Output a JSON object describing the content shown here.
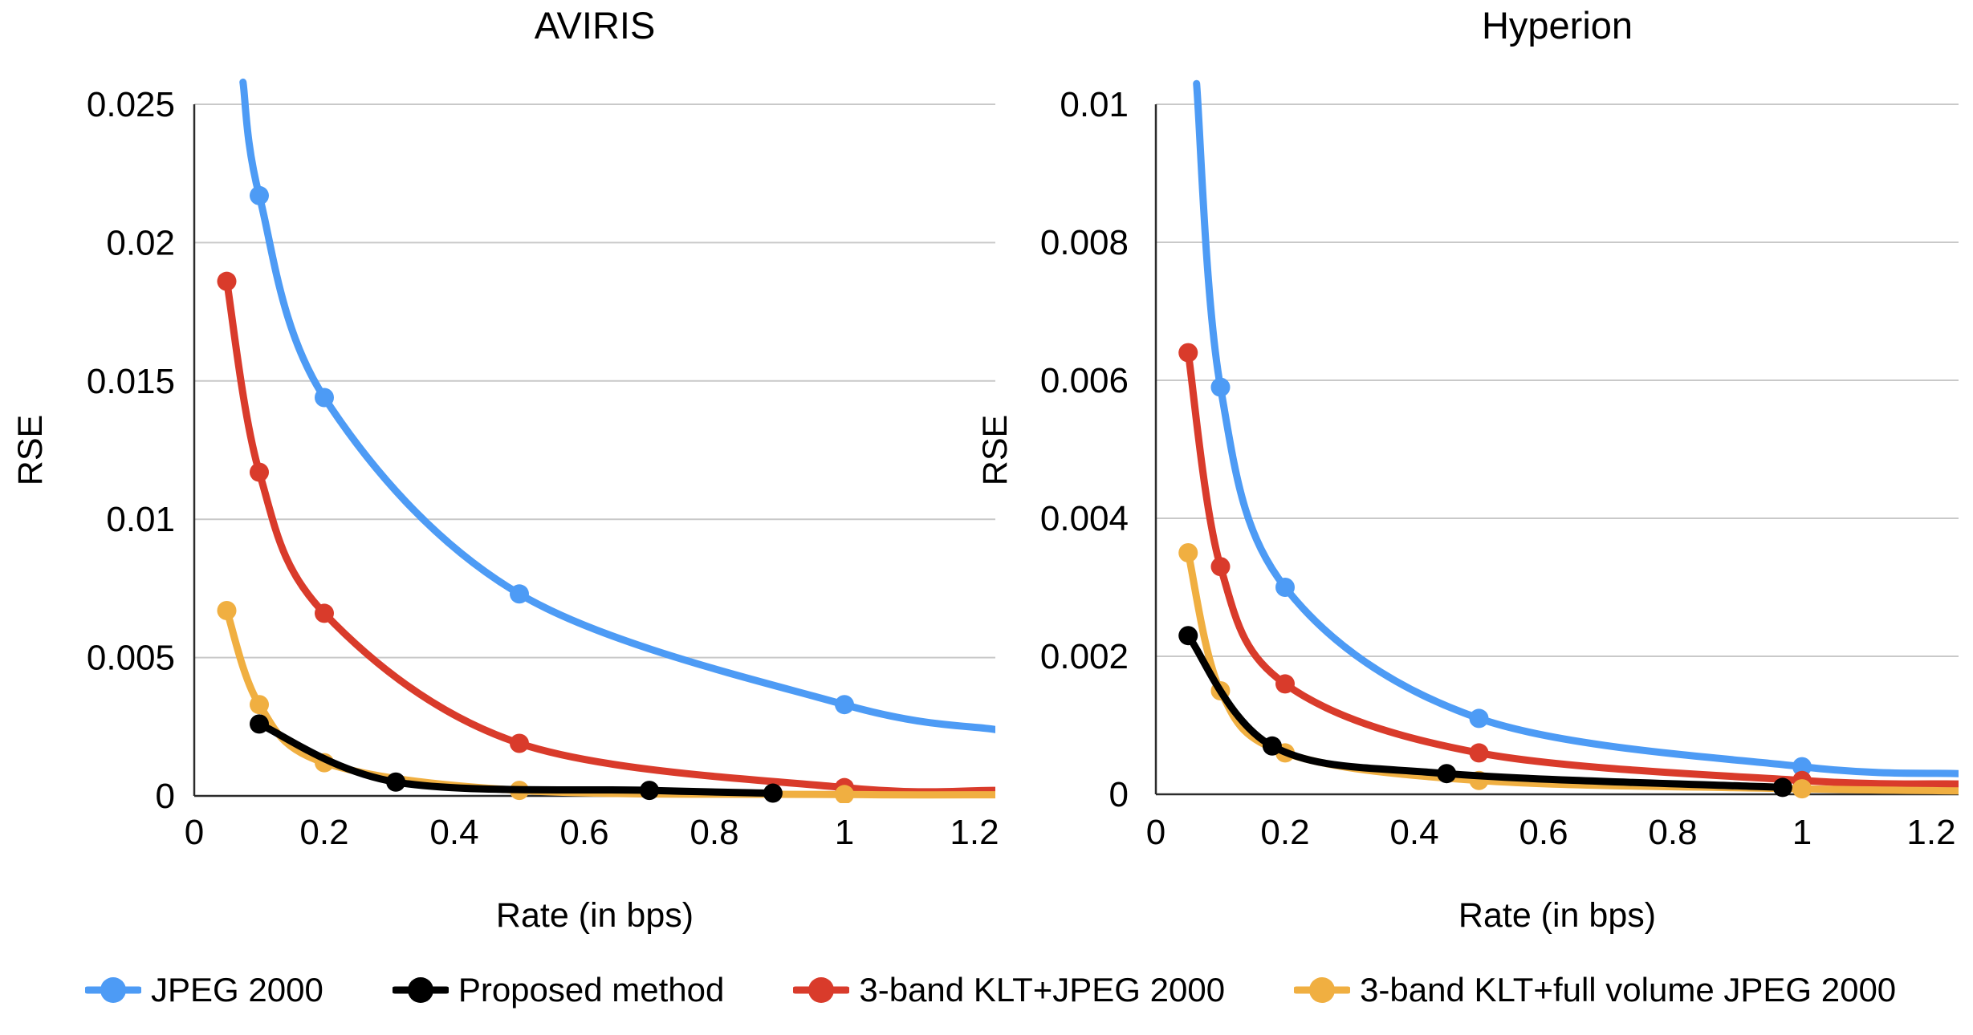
{
  "figure": {
    "background": "#ffffff"
  },
  "chart_data": [
    {
      "type": "line",
      "title": "AVIRIS",
      "xlabel": "Rate (in bps)",
      "ylabel": "RSE",
      "xlim": [
        0,
        1.232
      ],
      "ylim": [
        0,
        0.025
      ],
      "grid": "horizontal",
      "legend_position": "bottom",
      "x_ticks": {
        "values": [
          0,
          0.2,
          0.4,
          0.6,
          0.8,
          1,
          1.2
        ],
        "labels": [
          "0",
          "0.2",
          "0.4",
          "0.6",
          "0.8",
          "1",
          "1.2"
        ]
      },
      "y_ticks": {
        "values": [
          0,
          0.005,
          0.01,
          0.015,
          0.02,
          0.025
        ],
        "labels": [
          "0",
          "0.005",
          "0.01",
          "0.015",
          "0.02",
          "0.025"
        ]
      },
      "series": [
        {
          "name": "JPEG 2000",
          "color": "#4D9BF5",
          "points": [
            [
              0.1,
              0.0217
            ],
            [
              0.2,
              0.0144
            ],
            [
              0.5,
              0.0073
            ],
            [
              1,
              0.0033
            ]
          ],
          "enters_from_top_at": [
            0.075,
            0.0258
          ],
          "extends_to": [
            1.232,
            0.0024
          ]
        },
        {
          "name": "Proposed method",
          "color": "#000000",
          "points": [
            [
              0.1,
              0.0026
            ],
            [
              0.31,
              0.0005
            ],
            [
              0.7,
              0.0002
            ],
            [
              0.89,
              0.0001
            ]
          ]
        },
        {
          "name": "3-band KLT+JPEG 2000",
          "color": "#D93B2B",
          "points": [
            [
              0.05,
              0.0186
            ],
            [
              0.1,
              0.0117
            ],
            [
              0.2,
              0.0066
            ],
            [
              0.5,
              0.0019
            ],
            [
              1,
              0.0003
            ]
          ],
          "extends_to": [
            1.232,
            0.0002
          ]
        },
        {
          "name": "3-band KLT+full volume JPEG 2000",
          "color": "#F0AF41",
          "points": [
            [
              0.05,
              0.0067
            ],
            [
              0.1,
              0.0033
            ],
            [
              0.2,
              0.0012
            ],
            [
              0.5,
              0.0002
            ],
            [
              1,
              5e-05
            ]
          ],
          "extends_to": [
            1.232,
            4e-05
          ]
        }
      ]
    },
    {
      "type": "line",
      "title": "Hyperion",
      "xlabel": "Rate (in bps)",
      "ylabel": "RSE",
      "xlim": [
        0,
        1.242
      ],
      "ylim": [
        0,
        0.01
      ],
      "grid": "horizontal",
      "legend_position": "bottom",
      "x_ticks": {
        "values": [
          0,
          0.2,
          0.4,
          0.6,
          0.8,
          1,
          1.2
        ],
        "labels": [
          "0",
          "0.2",
          "0.4",
          "0.6",
          "0.8",
          "1",
          "1.2"
        ]
      },
      "y_ticks": {
        "values": [
          0,
          0.002,
          0.004,
          0.006,
          0.008,
          0.01
        ],
        "labels": [
          "0",
          "0.002",
          "0.004",
          "0.006",
          "0.008",
          "0.01"
        ]
      },
      "series": [
        {
          "name": "JPEG 2000",
          "color": "#4D9BF5",
          "points": [
            [
              0.1,
              0.0059
            ],
            [
              0.2,
              0.003
            ],
            [
              0.5,
              0.0011
            ],
            [
              1,
              0.0004
            ]
          ],
          "enters_from_top_at": [
            0.063,
            0.0103
          ],
          "extends_to": [
            1.242,
            0.0003
          ]
        },
        {
          "name": "Proposed method",
          "color": "#000000",
          "points": [
            [
              0.05,
              0.0023
            ],
            [
              0.18,
              0.0007
            ],
            [
              0.45,
              0.0003
            ],
            [
              0.97,
              0.0001
            ]
          ]
        },
        {
          "name": "3-band KLT+JPEG 2000",
          "color": "#D93B2B",
          "points": [
            [
              0.05,
              0.0064
            ],
            [
              0.1,
              0.0033
            ],
            [
              0.2,
              0.0016
            ],
            [
              0.5,
              0.0006
            ],
            [
              1,
              0.0002
            ]
          ],
          "extends_to": [
            1.242,
            0.00015
          ]
        },
        {
          "name": "3-band KLT+full volume JPEG 2000",
          "color": "#F0AF41",
          "points": [
            [
              0.05,
              0.0035
            ],
            [
              0.1,
              0.0015
            ],
            [
              0.2,
              0.0006
            ],
            [
              0.5,
              0.0002
            ],
            [
              1,
              8e-05
            ]
          ],
          "extends_to": [
            1.242,
            5e-05
          ]
        }
      ]
    }
  ],
  "legend": {
    "items": [
      {
        "label": "JPEG 2000",
        "color": "#4D9BF5"
      },
      {
        "label": "Proposed method",
        "color": "#000000"
      },
      {
        "label": "3-band KLT+JPEG 2000",
        "color": "#D93B2B"
      },
      {
        "label": "3-band KLT+full volume JPEG 2000",
        "color": "#F0AF41"
      }
    ]
  },
  "style_colors": {
    "gridline": "#C9C9C9",
    "axis": "#2B2B2B",
    "text": "#000000"
  }
}
